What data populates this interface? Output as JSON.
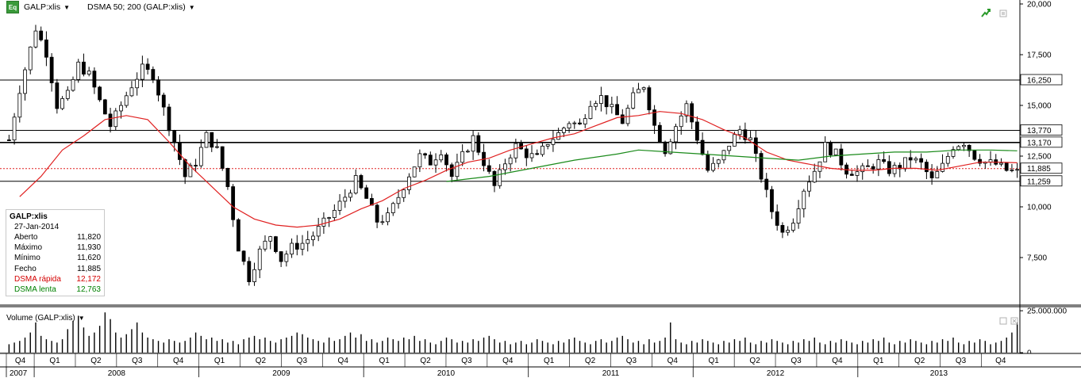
{
  "toolbar": {
    "symbol_label": "GALP:xlis",
    "study_label": "DSMA 50; 200 (GALP:xlis)",
    "eq_icon_text": "Eq"
  },
  "legend": {
    "symbol": "GALP:xlis",
    "date": "27-Jan-2014",
    "rows": [
      {
        "key": "Aberto",
        "value": "11,820"
      },
      {
        "key": "Máximo",
        "value": "11,930"
      },
      {
        "key": "Mínimo",
        "value": "11,620"
      },
      {
        "key": "Fecho",
        "value": "11,885"
      },
      {
        "key": "DSMA rápida",
        "value": "12,172"
      },
      {
        "key": "DSMA lenta",
        "value": "12,763"
      }
    ]
  },
  "volume_panel": {
    "title": "Volume (GALP:xlis)"
  },
  "colors": {
    "fast_ma": "#e02020",
    "slow_ma": "#1a8a1a",
    "dotted_line": "#e02020",
    "grid": "#000000",
    "bar_up": "#ffffff",
    "bar_down": "#000000"
  },
  "chart_data": {
    "type": "candlestick",
    "y_axis": {
      "ticks": [
        "7,500",
        "10,000",
        "12,500",
        "15,000",
        "17,500",
        "20,000"
      ],
      "range": [
        6000,
        20000
      ]
    },
    "volume_axis": {
      "ticks": [
        "0",
        "25.000.000"
      ],
      "range": [
        0,
        26000000
      ]
    },
    "horizontal_levels": [
      {
        "label": "16,250",
        "value": 16250
      },
      {
        "label": "13,770",
        "value": 13770
      },
      {
        "label": "13,170",
        "value": 13170
      },
      {
        "label": "11,885",
        "value": 11885,
        "style": "dotted"
      },
      {
        "label": "11,259",
        "value": 11259
      }
    ],
    "quarters": [
      "Q4",
      "Q1",
      "Q2",
      "Q3",
      "Q4",
      "Q1",
      "Q2",
      "Q3",
      "Q4",
      "Q1",
      "Q2",
      "Q3",
      "Q4",
      "Q1",
      "Q2",
      "Q3",
      "Q4",
      "Q1",
      "Q2",
      "Q3",
      "Q4",
      "Q1",
      "Q2",
      "Q3",
      "Q4"
    ],
    "years": [
      "2007",
      "2008",
      "2009",
      "2010",
      "2011",
      "2012",
      "2013"
    ],
    "price_path": [
      [
        0,
        13300
      ],
      [
        2,
        15800
      ],
      [
        3,
        16800
      ],
      [
        5,
        18800
      ],
      [
        7,
        17600
      ],
      [
        9,
        15000
      ],
      [
        11,
        15500
      ],
      [
        13,
        17000
      ],
      [
        15,
        16500
      ],
      [
        17,
        15200
      ],
      [
        19,
        14000
      ],
      [
        21,
        15000
      ],
      [
        23,
        16000
      ],
      [
        25,
        16800
      ],
      [
        27,
        16500
      ],
      [
        29,
        14800
      ],
      [
        31,
        13200
      ],
      [
        33,
        11500
      ],
      [
        35,
        12200
      ],
      [
        37,
        13500
      ],
      [
        39,
        12800
      ],
      [
        41,
        11000
      ],
      [
        43,
        8000
      ],
      [
        45,
        6500
      ],
      [
        47,
        7800
      ],
      [
        49,
        8600
      ],
      [
        51,
        7400
      ],
      [
        53,
        8000
      ],
      [
        55,
        8200
      ],
      [
        57,
        8600
      ],
      [
        59,
        9200
      ],
      [
        61,
        9800
      ],
      [
        63,
        10500
      ],
      [
        65,
        11300
      ],
      [
        67,
        10400
      ],
      [
        69,
        9300
      ],
      [
        71,
        9500
      ],
      [
        73,
        10500
      ],
      [
        75,
        11600
      ],
      [
        77,
        12500
      ],
      [
        79,
        12200
      ],
      [
        81,
        12800
      ],
      [
        83,
        11500
      ],
      [
        85,
        12500
      ],
      [
        87,
        13400
      ],
      [
        89,
        12200
      ],
      [
        91,
        11000
      ],
      [
        93,
        12200
      ],
      [
        95,
        13000
      ],
      [
        97,
        12600
      ],
      [
        99,
        12400
      ],
      [
        101,
        13200
      ],
      [
        103,
        13600
      ],
      [
        105,
        14200
      ],
      [
        107,
        14000
      ],
      [
        109,
        15200
      ],
      [
        111,
        15400
      ],
      [
        113,
        14800
      ],
      [
        115,
        14200
      ],
      [
        117,
        15400
      ],
      [
        119,
        16000
      ],
      [
        121,
        14000
      ],
      [
        123,
        12800
      ],
      [
        125,
        14000
      ],
      [
        127,
        15000
      ],
      [
        129,
        13400
      ],
      [
        131,
        11800
      ],
      [
        133,
        12200
      ],
      [
        135,
        13100
      ],
      [
        137,
        13800
      ],
      [
        139,
        13300
      ],
      [
        141,
        11500
      ],
      [
        143,
        9800
      ],
      [
        145,
        8700
      ],
      [
        147,
        9400
      ],
      [
        149,
        10900
      ],
      [
        151,
        11800
      ],
      [
        153,
        13000
      ],
      [
        155,
        12600
      ],
      [
        157,
        11800
      ],
      [
        159,
        11700
      ],
      [
        161,
        11900
      ],
      [
        163,
        12200
      ],
      [
        165,
        11800
      ],
      [
        167,
        12000
      ],
      [
        169,
        12400
      ],
      [
        171,
        12100
      ],
      [
        173,
        11300
      ],
      [
        175,
        12000
      ],
      [
        177,
        13000
      ],
      [
        179,
        13200
      ],
      [
        181,
        12500
      ],
      [
        183,
        12200
      ],
      [
        185,
        12100
      ],
      [
        187,
        11800
      ],
      [
        189,
        11700
      ]
    ],
    "fast_ma_path": [
      [
        2,
        10500
      ],
      [
        6,
        11500
      ],
      [
        10,
        12800
      ],
      [
        14,
        13500
      ],
      [
        18,
        14300
      ],
      [
        22,
        14500
      ],
      [
        26,
        14300
      ],
      [
        30,
        13200
      ],
      [
        34,
        12000
      ],
      [
        38,
        11000
      ],
      [
        42,
        10000
      ],
      [
        46,
        9400
      ],
      [
        50,
        9100
      ],
      [
        54,
        9000
      ],
      [
        58,
        9100
      ],
      [
        62,
        9400
      ],
      [
        66,
        9900
      ],
      [
        70,
        10300
      ],
      [
        74,
        10900
      ],
      [
        78,
        11300
      ],
      [
        82,
        11800
      ],
      [
        86,
        12200
      ],
      [
        90,
        12400
      ],
      [
        94,
        12800
      ],
      [
        98,
        13100
      ],
      [
        102,
        13400
      ],
      [
        106,
        13600
      ],
      [
        110,
        14000
      ],
      [
        114,
        14400
      ],
      [
        118,
        14500
      ],
      [
        122,
        14700
      ],
      [
        126,
        14600
      ],
      [
        130,
        14300
      ],
      [
        134,
        13800
      ],
      [
        138,
        13400
      ],
      [
        142,
        12700
      ],
      [
        146,
        12300
      ],
      [
        150,
        12100
      ],
      [
        154,
        11900
      ],
      [
        158,
        11800
      ],
      [
        162,
        11800
      ],
      [
        166,
        11900
      ],
      [
        170,
        11900
      ],
      [
        174,
        11800
      ],
      [
        178,
        12000
      ],
      [
        182,
        12200
      ],
      [
        186,
        12200
      ],
      [
        189,
        12172
      ]
    ],
    "slow_ma_path": [
      [
        82,
        11250
      ],
      [
        90,
        11500
      ],
      [
        98,
        11900
      ],
      [
        106,
        12300
      ],
      [
        114,
        12600
      ],
      [
        118,
        12800
      ],
      [
        124,
        12700
      ],
      [
        130,
        12600
      ],
      [
        136,
        12500
      ],
      [
        142,
        12400
      ],
      [
        148,
        12300
      ],
      [
        154,
        12500
      ],
      [
        160,
        12600
      ],
      [
        166,
        12700
      ],
      [
        172,
        12700
      ],
      [
        178,
        12800
      ],
      [
        184,
        12800
      ],
      [
        189,
        12763
      ]
    ],
    "volume_profile": [
      5,
      6,
      7,
      9,
      12,
      18,
      10,
      8,
      7,
      6,
      8,
      14,
      19,
      22,
      15,
      10,
      12,
      16,
      24,
      20,
      12,
      9,
      11,
      14,
      18,
      12,
      9,
      8,
      7,
      6,
      8,
      7,
      6,
      7,
      9,
      12,
      10,
      8,
      9,
      7,
      8,
      6,
      7,
      5,
      8,
      9,
      10,
      8,
      9,
      7,
      6,
      8,
      9,
      10,
      12,
      11,
      9,
      8,
      7,
      6,
      9,
      7,
      8,
      10,
      12,
      9,
      11,
      7,
      8,
      6,
      7,
      9,
      8,
      7,
      9,
      8,
      10,
      7,
      8,
      6,
      5,
      7,
      9,
      8,
      6,
      7,
      6,
      8,
      7,
      9,
      10,
      8,
      6,
      7,
      5,
      6,
      7,
      5,
      6,
      8,
      7,
      6,
      5,
      7,
      6,
      8,
      9,
      7,
      6,
      5,
      7,
      8,
      6,
      7,
      9,
      10,
      8,
      6,
      7,
      5,
      8,
      6,
      7,
      9,
      18,
      8,
      6,
      5,
      7,
      6,
      8,
      7,
      6,
      5,
      7,
      6,
      8,
      7,
      9,
      6,
      5,
      7,
      6,
      8,
      7,
      6,
      5,
      7,
      6,
      8,
      7,
      9,
      6,
      5,
      7,
      6,
      8,
      7,
      6,
      5,
      7,
      6,
      8,
      7,
      9,
      6,
      5,
      7,
      6,
      8,
      7,
      6,
      5,
      7,
      6,
      8,
      7,
      9,
      6,
      5,
      7,
      6,
      8,
      7
    ]
  }
}
